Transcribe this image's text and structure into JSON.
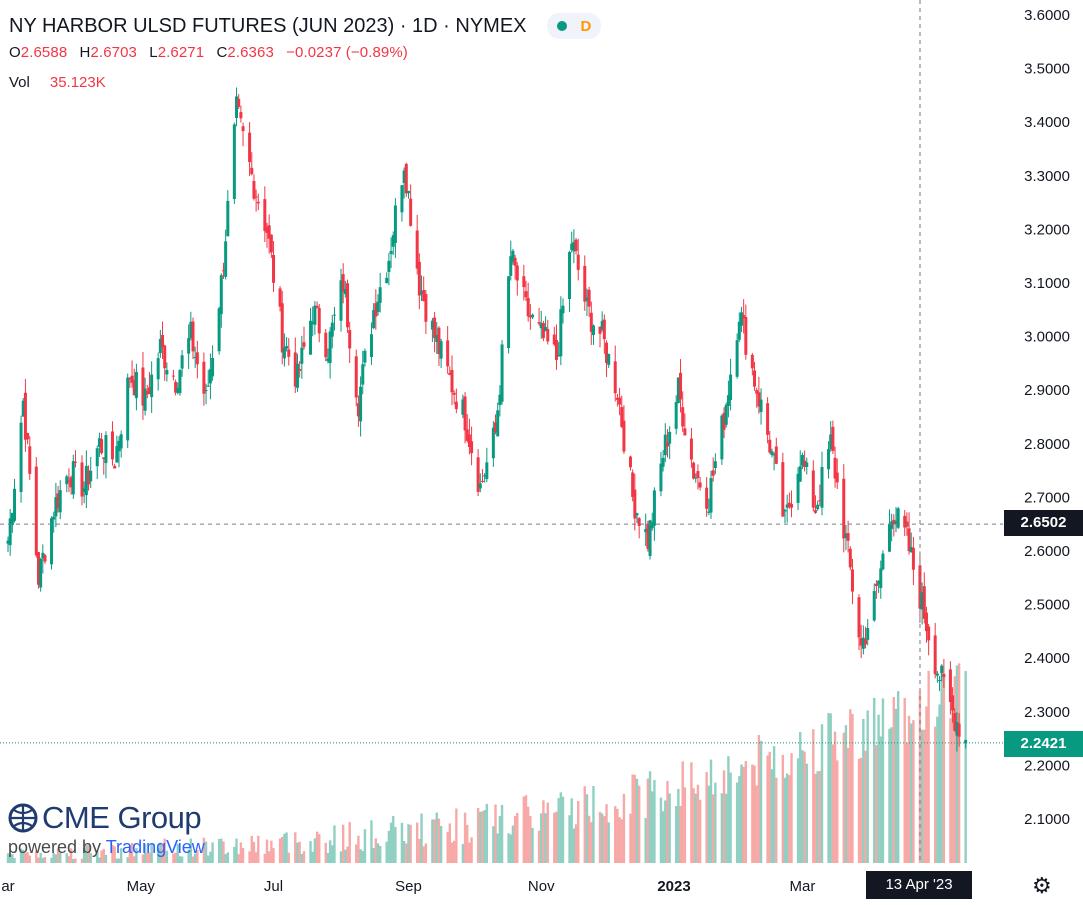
{
  "header": {
    "title": "NY HARBOR ULSD FUTURES (JUN 2023) · 1D · NYMEX",
    "interval_badge": "D",
    "ohlc": {
      "o_key": "O",
      "o": "2.6588",
      "h_key": "H",
      "h": "2.6703",
      "l_key": "L",
      "l": "2.6271",
      "c_key": "C",
      "c": "2.6363",
      "change": "−0.0237 (−0.89%)"
    },
    "vol_key": "Vol",
    "vol": "35.123K"
  },
  "crosshair": {
    "price": "2.6502",
    "date": "13 Apr '23"
  },
  "last_price": "2.2421",
  "brand": {
    "logo": "CME Group",
    "powered_prefix": "powered by ",
    "powered_name": "TradingView"
  },
  "colors": {
    "up": "#089981",
    "down": "#f23645",
    "vol_up": "#8fd0c2",
    "vol_down": "#f7a9a7",
    "axis_text": "#131722"
  },
  "icons": {
    "status": "green-dot-icon",
    "settings": "gear-icon"
  },
  "chart_data": {
    "type": "candlestick",
    "y_axis": {
      "min": 2.02,
      "max": 3.62,
      "ticks": [
        "3.6000",
        "3.5000",
        "3.4000",
        "3.3000",
        "3.2000",
        "3.1000",
        "3.0000",
        "2.9000",
        "2.8000",
        "2.7000",
        "2.6000",
        "2.5000",
        "2.4000",
        "2.3000",
        "2.2000",
        "2.1000"
      ]
    },
    "x_axis": {
      "ticks": [
        {
          "label": "ar",
          "month": 0
        },
        {
          "label": "May",
          "month": 2
        },
        {
          "label": "Jul",
          "month": 4
        },
        {
          "label": "Sep",
          "month": 6
        },
        {
          "label": "Nov",
          "month": 8
        },
        {
          "label": "2023",
          "month": 10
        },
        {
          "label": "Mar",
          "month": 12
        }
      ]
    },
    "close_path": [
      [
        "2022-03-01",
        2.62
      ],
      [
        "2022-03-08",
        2.88
      ],
      [
        "2022-03-15",
        2.55
      ],
      [
        "2022-03-22",
        2.68
      ],
      [
        "2022-03-29",
        2.75
      ],
      [
        "2022-04-05",
        2.72
      ],
      [
        "2022-04-12",
        2.8
      ],
      [
        "2022-04-19",
        2.77
      ],
      [
        "2022-04-26",
        2.93
      ],
      [
        "2022-05-03",
        2.88
      ],
      [
        "2022-05-10",
        2.98
      ],
      [
        "2022-05-17",
        2.92
      ],
      [
        "2022-05-24",
        3.0
      ],
      [
        "2022-05-31",
        2.88
      ],
      [
        "2022-06-07",
        3.1
      ],
      [
        "2022-06-14",
        3.42
      ],
      [
        "2022-06-21",
        3.3
      ],
      [
        "2022-06-28",
        3.2
      ],
      [
        "2022-07-05",
        3.0
      ],
      [
        "2022-07-12",
        2.92
      ],
      [
        "2022-07-19",
        3.05
      ],
      [
        "2022-07-26",
        2.98
      ],
      [
        "2022-08-02",
        3.1
      ],
      [
        "2022-08-09",
        2.88
      ],
      [
        "2022-08-16",
        3.05
      ],
      [
        "2022-08-23",
        3.15
      ],
      [
        "2022-08-30",
        3.33
      ],
      [
        "2022-09-06",
        3.1
      ],
      [
        "2022-09-13",
        3.0
      ],
      [
        "2022-09-20",
        2.92
      ],
      [
        "2022-09-27",
        2.85
      ],
      [
        "2022-10-04",
        2.72
      ],
      [
        "2022-10-11",
        2.82
      ],
      [
        "2022-10-18",
        3.15
      ],
      [
        "2022-10-25",
        3.05
      ],
      [
        "2022-11-01",
        3.0
      ],
      [
        "2022-11-08",
        2.96
      ],
      [
        "2022-11-15",
        3.18
      ],
      [
        "2022-11-22",
        3.05
      ],
      [
        "2022-11-29",
        3.0
      ],
      [
        "2022-12-06",
        2.9
      ],
      [
        "2022-12-13",
        2.7
      ],
      [
        "2022-12-20",
        2.62
      ],
      [
        "2022-12-27",
        2.78
      ],
      [
        "2023-01-03",
        2.9
      ],
      [
        "2023-01-10",
        2.75
      ],
      [
        "2023-01-17",
        2.7
      ],
      [
        "2023-01-24",
        2.85
      ],
      [
        "2023-01-31",
        3.05
      ],
      [
        "2023-02-07",
        2.92
      ],
      [
        "2023-02-14",
        2.8
      ],
      [
        "2023-02-21",
        2.65
      ],
      [
        "2023-02-28",
        2.78
      ],
      [
        "2023-03-07",
        2.68
      ],
      [
        "2023-03-14",
        2.8
      ],
      [
        "2023-03-21",
        2.62
      ],
      [
        "2023-03-28",
        2.42
      ],
      [
        "2023-04-04",
        2.52
      ],
      [
        "2023-04-11",
        2.68
      ],
      [
        "2023-04-18",
        2.62
      ],
      [
        "2023-04-25",
        2.5
      ],
      [
        "2023-05-02",
        2.38
      ],
      [
        "2023-05-09",
        2.3
      ],
      [
        "2023-05-16",
        2.24
      ]
    ],
    "last": {
      "open": 2.6588,
      "high": 2.6703,
      "low": 2.6271,
      "close": 2.6363
    },
    "price_lines": {
      "crosshair": 2.6502,
      "last": 2.2421
    }
  }
}
